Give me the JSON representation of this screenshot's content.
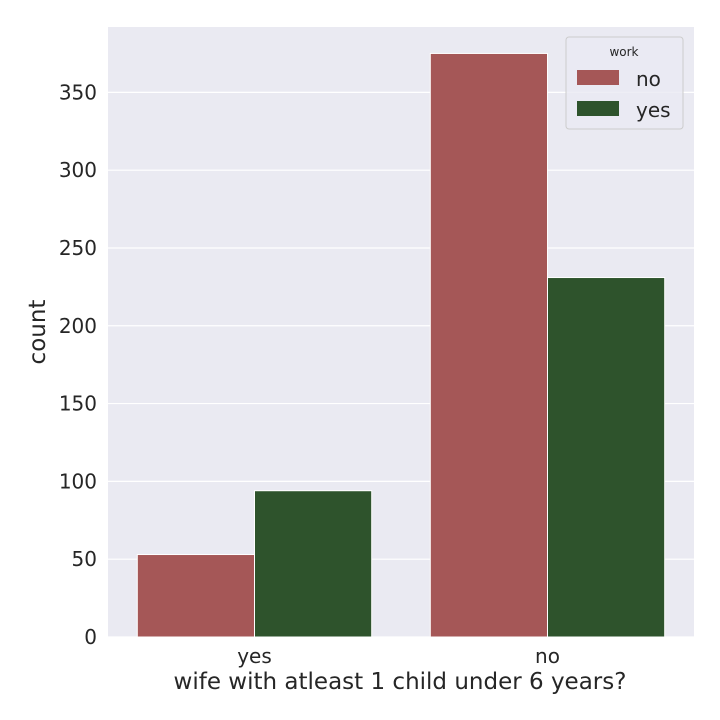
{
  "chart_data": {
    "type": "bar",
    "xlabel": "wife with atleast 1 child under 6 years?",
    "ylabel": "count",
    "categories": [
      "yes",
      "no"
    ],
    "series": [
      {
        "name": "no",
        "values": [
          53,
          375
        ],
        "color": "#a55757"
      },
      {
        "name": "yes",
        "values": [
          94,
          231
        ],
        "color": "#2e532c"
      }
    ],
    "ylim": [
      0,
      392
    ],
    "yticks": [
      0,
      50,
      100,
      150,
      200,
      250,
      300,
      350
    ],
    "grid": true,
    "legend": {
      "title": "work",
      "position": "top-right"
    },
    "background": "#eaeaf2"
  }
}
